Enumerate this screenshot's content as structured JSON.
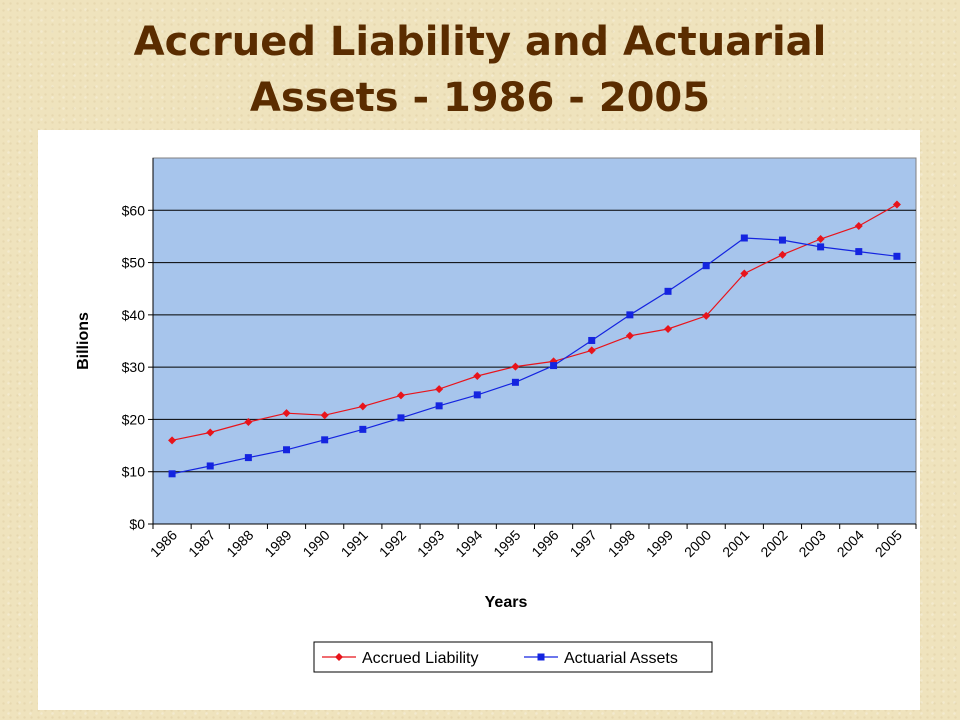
{
  "slide": {
    "title_line1": "Accrued Liability and Actuarial",
    "title_line2": "Assets - 1986 - 2005"
  },
  "colors": {
    "plot_background": "#a7c5ec",
    "accrued_liability": "#e8141b",
    "actuarial_assets": "#1424e0"
  },
  "chart_data": {
    "type": "line",
    "title": "",
    "xlabel": "Years",
    "ylabel": "Billions",
    "ylim": [
      0,
      70
    ],
    "yticks": [
      0,
      10,
      20,
      30,
      40,
      50,
      60
    ],
    "ytick_labels": [
      "$0",
      "$10",
      "$20",
      "$30",
      "$40",
      "$50",
      "$60"
    ],
    "grid": "horizontal",
    "legend_position": "bottom",
    "categories": [
      "1986",
      "1987",
      "1988",
      "1989",
      "1990",
      "1991",
      "1992",
      "1993",
      "1994",
      "1995",
      "1996",
      "1997",
      "1998",
      "1999",
      "2000",
      "2001",
      "2002",
      "2003",
      "2004",
      "2005"
    ],
    "series": [
      {
        "name": "Accrued Liability",
        "marker": "diamond",
        "values": [
          16.0,
          17.5,
          19.5,
          21.2,
          20.8,
          22.5,
          24.6,
          25.8,
          28.3,
          30.1,
          31.1,
          33.2,
          36.0,
          37.3,
          39.8,
          47.9,
          51.5,
          54.5,
          57.0,
          61.1
        ]
      },
      {
        "name": "Actuarial Assets",
        "marker": "square",
        "values": [
          9.6,
          11.1,
          12.7,
          14.2,
          16.1,
          18.1,
          20.3,
          22.6,
          24.7,
          27.1,
          30.3,
          35.1,
          40.0,
          44.5,
          49.4,
          54.7,
          54.3,
          53.0,
          52.1,
          51.2
        ]
      }
    ]
  }
}
